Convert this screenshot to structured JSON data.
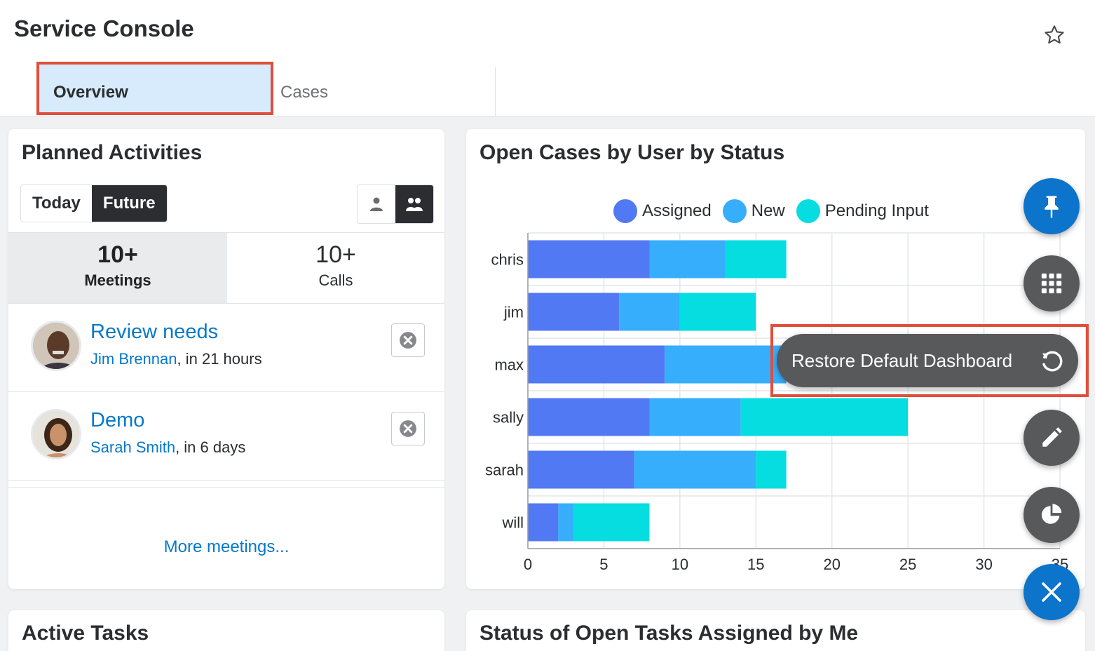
{
  "header": {
    "title": "Service Console",
    "tabs": [
      "Overview",
      "Cases"
    ],
    "favorite_icon": "star-icon"
  },
  "planned_activities": {
    "title": "Planned Activities",
    "filter": [
      "Today",
      "Future"
    ],
    "selected_filter": "Future",
    "scope_icons": [
      "single-user-icon",
      "group-users-icon"
    ],
    "counts": [
      {
        "value": "10+",
        "label": "Meetings"
      },
      {
        "value": "10+",
        "label": "Calls"
      }
    ],
    "items": [
      {
        "title": "Review needs",
        "who": "Jim Brennan",
        "when": ", in 21 hours"
      },
      {
        "title": "Demo",
        "who": "Sarah Smith",
        "when": ", in 6 days"
      }
    ],
    "more_link": "More meetings..."
  },
  "open_cases": {
    "title": "Open Cases by User by Status"
  },
  "chart_data": {
    "type": "bar",
    "orientation": "horizontal",
    "stacked": true,
    "categories": [
      "chris",
      "jim",
      "max",
      "sally",
      "sarah",
      "will"
    ],
    "series": [
      {
        "name": "Assigned",
        "color": "#5179f4",
        "values": [
          8,
          6,
          9,
          8,
          7,
          2
        ]
      },
      {
        "name": "New",
        "color": "#36aefc",
        "values": [
          5,
          4,
          8,
          6,
          8,
          1
        ]
      },
      {
        "name": "Pending Input",
        "color": "#05dde0",
        "values": [
          4,
          5,
          0,
          11,
          2,
          5
        ]
      }
    ],
    "xlim": [
      0,
      35
    ],
    "xticks": [
      "0",
      "5",
      "10",
      "15",
      "20",
      "25",
      "30",
      "35"
    ],
    "grid": true,
    "legend": "top"
  },
  "active_tasks": {
    "title": "Active Tasks"
  },
  "open_tasks": {
    "title": "Status of Open Tasks Assigned by Me"
  },
  "fab_menu": {
    "items": [
      "pin-icon",
      "grid-icon",
      "restore-icon",
      "edit-icon",
      "chart-icon",
      "close-icon"
    ],
    "tooltip": "Restore Default Dashboard"
  }
}
